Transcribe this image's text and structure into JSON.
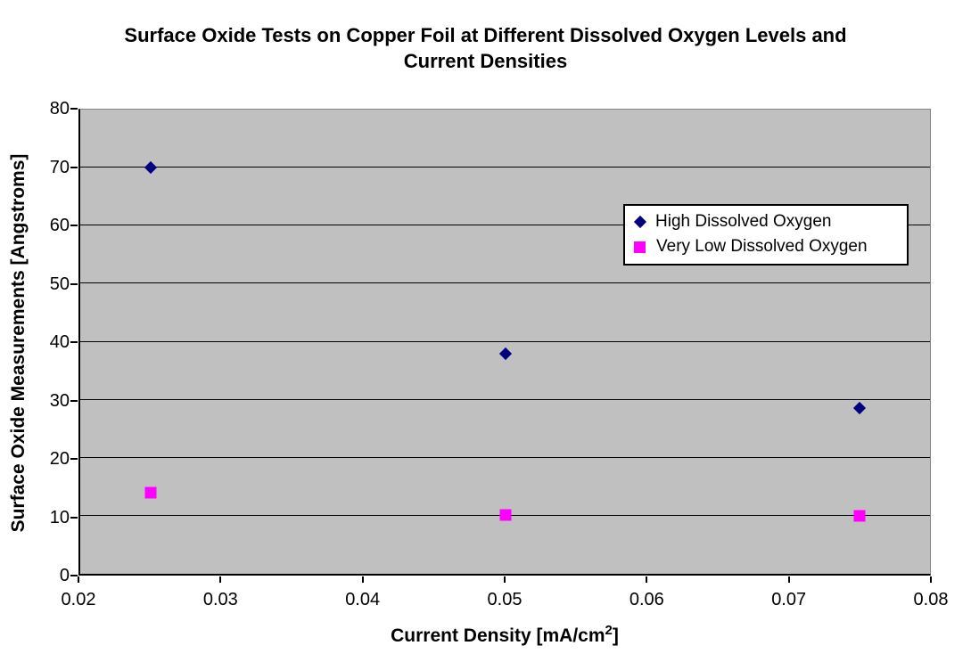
{
  "chart_data": {
    "type": "scatter",
    "title": "Surface Oxide Tests on Copper Foil at Different Dissolved Oxygen Levels and Current Densities",
    "title_lines": [
      "Surface Oxide Tests on Copper Foil at Different Dissolved Oxygen Levels and",
      "Current Densities"
    ],
    "xlabel": "Current Density [mA/cm²]",
    "xlabel_parts": {
      "main": "Current Density [mA/cm",
      "sup": "2",
      "close": "]"
    },
    "ylabel": "Surface Oxide Measurements [Angstroms]",
    "xlim": [
      0.02,
      0.08
    ],
    "ylim": [
      0,
      80
    ],
    "x_tick_values": [
      0.02,
      0.03,
      0.04,
      0.05,
      0.06,
      0.07,
      0.08
    ],
    "x_tick_labels": [
      "0.02",
      "0.03",
      "0.04",
      "0.05",
      "0.06",
      "0.07",
      "0.08"
    ],
    "y_tick_values": [
      0,
      10,
      20,
      30,
      40,
      50,
      60,
      70,
      80
    ],
    "y_tick_labels": [
      "0",
      "10",
      "20",
      "30",
      "40",
      "50",
      "60",
      "70",
      "80"
    ],
    "grid": {
      "horizontal": true,
      "vertical": false
    },
    "legend_position": "inside-upper-right",
    "series": [
      {
        "name": "High Dissolved Oxygen",
        "marker": "diamond",
        "color": "#000080",
        "points": [
          [
            0.025,
            70
          ],
          [
            0.05,
            38
          ],
          [
            0.075,
            28.5
          ]
        ]
      },
      {
        "name": "Very Low Dissolved Oxygen",
        "marker": "square",
        "color": "#FF00FF",
        "points": [
          [
            0.025,
            14
          ],
          [
            0.05,
            10.2
          ],
          [
            0.075,
            10
          ]
        ]
      }
    ]
  },
  "colors": {
    "chart_background": "#FFFFFF",
    "plot_background": "#C0C0C0",
    "plot_border": "#848484",
    "axis": "#000000",
    "gridline": "#000000",
    "legend_border": "#000000",
    "legend_background": "#FFFFFF",
    "series_high_dissolved_oxygen": "#000080",
    "series_very_low_dissolved_oxygen": "#FF00FF"
  }
}
